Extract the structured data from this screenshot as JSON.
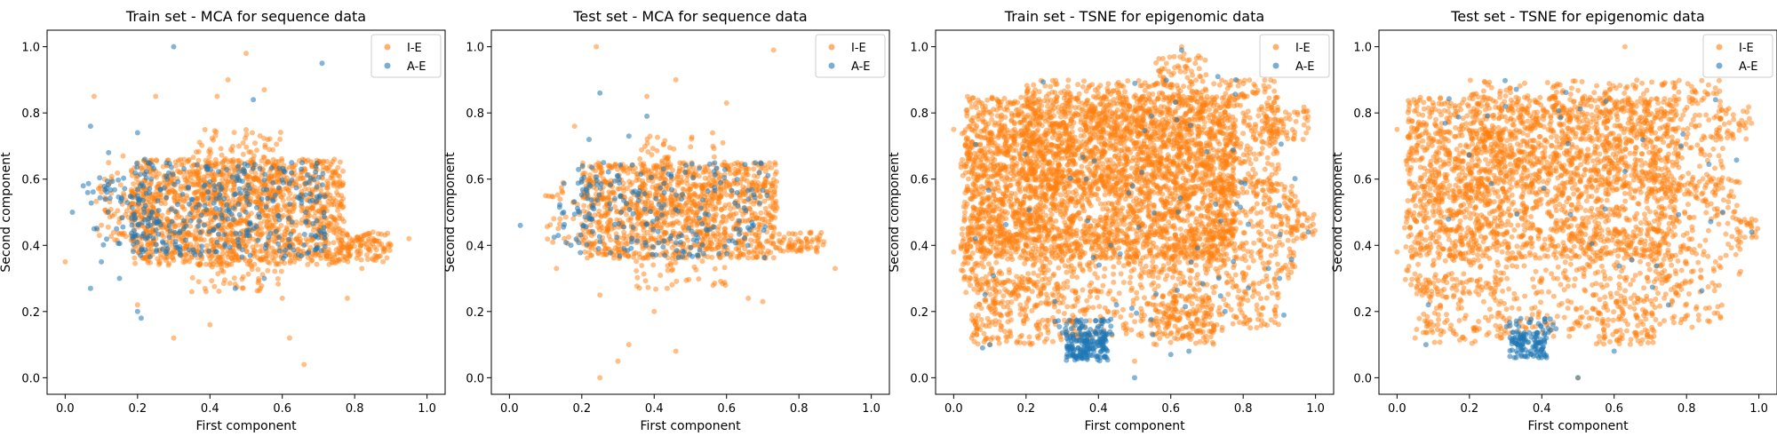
{
  "colors": {
    "ie": "#ff7f0e",
    "ae": "#1f77b4"
  },
  "chart_data": [
    {
      "type": "scatter",
      "title": "Train set - MCA for sequence data",
      "xlabel": "First component",
      "ylabel": "Second component",
      "xlim": [
        -0.05,
        1.05
      ],
      "ylim": [
        -0.05,
        1.05
      ],
      "xticks": [
        "0.0",
        "0.2",
        "0.4",
        "0.6",
        "0.8",
        "1.0"
      ],
      "yticks": [
        "0.0",
        "0.2",
        "0.4",
        "0.6",
        "0.8",
        "1.0"
      ],
      "legend": {
        "placement": "top-right",
        "entries": [
          "I-E",
          "A-E"
        ]
      },
      "series": [
        {
          "name": "I-E",
          "color": "#ff7f0e",
          "points": [
            [
              0.0,
              0.35
            ],
            [
              0.08,
              0.85
            ],
            [
              0.3,
              0.12
            ],
            [
              0.5,
              0.98
            ],
            [
              0.62,
              0.12
            ],
            [
              0.66,
              0.04
            ],
            [
              0.95,
              0.42
            ],
            [
              0.9,
              0.4
            ],
            [
              0.84,
              0.43
            ],
            [
              0.2,
              0.22
            ],
            [
              0.45,
              0.9
            ],
            [
              0.55,
              0.87
            ],
            [
              0.4,
              0.16
            ],
            [
              0.35,
              0.26
            ],
            [
              0.6,
              0.24
            ],
            [
              0.78,
              0.24
            ],
            [
              0.16,
              0.67
            ],
            [
              0.12,
              0.65
            ],
            [
              0.25,
              0.85
            ],
            [
              0.7,
              0.65
            ],
            [
              0.48,
              0.7
            ],
            [
              0.1,
              0.56
            ],
            [
              0.42,
              0.85
            ],
            [
              0.15,
              0.48
            ],
            [
              0.82,
              0.33
            ]
          ],
          "clusters": [
            {
              "x": [
                0.18,
                0.77
              ],
              "y": [
                0.34,
                0.66
              ],
              "n": 1400
            },
            {
              "x": [
                0.35,
                0.6
              ],
              "y": [
                0.26,
                0.75
              ],
              "n": 260
            },
            {
              "x": [
                0.76,
                0.9
              ],
              "y": [
                0.35,
                0.44
              ],
              "n": 110
            },
            {
              "x": [
                0.08,
                0.25
              ],
              "y": [
                0.4,
                0.62
              ],
              "n": 90
            }
          ]
        },
        {
          "name": "A-E",
          "color": "#1f77b4",
          "points": [
            [
              0.3,
              1.0
            ],
            [
              0.71,
              0.95
            ],
            [
              0.07,
              0.76
            ],
            [
              0.02,
              0.5
            ],
            [
              0.07,
              0.27
            ],
            [
              0.2,
              0.2
            ],
            [
              0.21,
              0.18
            ],
            [
              0.12,
              0.68
            ],
            [
              0.28,
              0.4
            ],
            [
              0.52,
              0.84
            ],
            [
              0.05,
              0.58
            ],
            [
              0.1,
              0.35
            ],
            [
              0.15,
              0.3
            ],
            [
              0.2,
              0.74
            ],
            [
              0.08,
              0.45
            ],
            [
              0.22,
              0.66
            ],
            [
              0.55,
              0.3
            ],
            [
              0.47,
              0.27
            ]
          ],
          "clusters": [
            {
              "x": [
                0.18,
                0.72
              ],
              "y": [
                0.36,
                0.65
              ],
              "n": 330
            },
            {
              "x": [
                0.06,
                0.24
              ],
              "y": [
                0.4,
                0.62
              ],
              "n": 60
            }
          ]
        }
      ]
    },
    {
      "type": "scatter",
      "title": "Test set - MCA for sequence data",
      "xlabel": "First component",
      "ylabel": "Second component",
      "xlim": [
        -0.05,
        1.05
      ],
      "ylim": [
        -0.05,
        1.05
      ],
      "xticks": [
        "0.0",
        "0.2",
        "0.4",
        "0.6",
        "0.8",
        "1.0"
      ],
      "yticks": [
        "0.0",
        "0.2",
        "0.4",
        "0.6",
        "0.8",
        "1.0"
      ],
      "legend": {
        "placement": "top-right",
        "entries": [
          "I-E",
          "A-E"
        ]
      },
      "series": [
        {
          "name": "I-E",
          "color": "#ff7f0e",
          "points": [
            [
              0.24,
              1.0
            ],
            [
              0.73,
              0.99
            ],
            [
              0.25,
              0.0
            ],
            [
              0.3,
              0.05
            ],
            [
              0.33,
              0.1
            ],
            [
              0.46,
              0.08
            ],
            [
              0.9,
              0.33
            ],
            [
              0.85,
              0.38
            ],
            [
              0.82,
              0.42
            ],
            [
              0.46,
              0.9
            ],
            [
              0.6,
              0.83
            ],
            [
              0.38,
              0.85
            ],
            [
              0.25,
              0.25
            ],
            [
              0.4,
              0.2
            ],
            [
              0.13,
              0.33
            ],
            [
              0.1,
              0.55
            ],
            [
              0.66,
              0.24
            ],
            [
              0.7,
              0.23
            ],
            [
              0.18,
              0.76
            ]
          ],
          "clusters": [
            {
              "x": [
                0.2,
                0.74
              ],
              "y": [
                0.36,
                0.65
              ],
              "n": 1100
            },
            {
              "x": [
                0.35,
                0.6
              ],
              "y": [
                0.26,
                0.74
              ],
              "n": 160
            },
            {
              "x": [
                0.74,
                0.87
              ],
              "y": [
                0.38,
                0.44
              ],
              "n": 60
            },
            {
              "x": [
                0.1,
                0.25
              ],
              "y": [
                0.4,
                0.6
              ],
              "n": 40
            }
          ]
        },
        {
          "name": "A-E",
          "color": "#1f77b4",
          "points": [
            [
              0.25,
              0.86
            ],
            [
              0.03,
              0.46
            ],
            [
              0.38,
              0.79
            ],
            [
              0.22,
              0.72
            ],
            [
              0.2,
              0.6
            ],
            [
              0.26,
              0.65
            ],
            [
              0.33,
              0.73
            ],
            [
              0.15,
              0.5
            ],
            [
              0.17,
              0.4
            ]
          ],
          "clusters": [
            {
              "x": [
                0.18,
                0.72
              ],
              "y": [
                0.36,
                0.65
              ],
              "n": 200
            },
            {
              "x": [
                0.12,
                0.26
              ],
              "y": [
                0.4,
                0.62
              ],
              "n": 25
            }
          ]
        }
      ]
    },
    {
      "type": "scatter",
      "title": "Train set - TSNE for epigenomic data",
      "xlabel": "First component",
      "ylabel": "Second component",
      "xlim": [
        -0.05,
        1.05
      ],
      "ylim": [
        -0.05,
        1.05
      ],
      "xticks": [
        "0.0",
        "0.2",
        "0.4",
        "0.6",
        "0.8",
        "1.0"
      ],
      "yticks": [
        "0.0",
        "0.2",
        "0.4",
        "0.6",
        "0.8",
        "1.0"
      ],
      "legend": {
        "placement": "top-right",
        "entries": [
          "I-E",
          "A-E"
        ]
      },
      "series": [
        {
          "name": "I-E",
          "color": "#ff7f0e",
          "points": [
            [
              0.63,
              1.0
            ],
            [
              0.0,
              0.75
            ],
            [
              0.99,
              0.44
            ],
            [
              0.95,
              0.47
            ],
            [
              0.92,
              0.52
            ],
            [
              0.0,
              0.38
            ],
            [
              0.02,
              0.4
            ],
            [
              0.05,
              0.12
            ],
            [
              0.1,
              0.1
            ],
            [
              0.5,
              0.05
            ],
            [
              0.56,
              0.1
            ]
          ],
          "clusters": [
            {
              "x": [
                0.03,
                0.78
              ],
              "y": [
                0.36,
                0.85
              ],
              "n": 2600
            },
            {
              "x": [
                0.2,
                0.9
              ],
              "y": [
                0.55,
                0.9
              ],
              "n": 900
            },
            {
              "x": [
                0.02,
                0.3
              ],
              "y": [
                0.25,
                0.75
              ],
              "n": 500
            },
            {
              "x": [
                0.05,
                0.3
              ],
              "y": [
                0.1,
                0.3
              ],
              "n": 220
            },
            {
              "x": [
                0.3,
                0.75
              ],
              "y": [
                0.12,
                0.45
              ],
              "n": 450
            },
            {
              "x": [
                0.7,
                0.95
              ],
              "y": [
                0.3,
                0.6
              ],
              "n": 250
            },
            {
              "x": [
                0.85,
                0.98
              ],
              "y": [
                0.72,
                0.82
              ],
              "n": 70
            },
            {
              "x": [
                0.75,
                0.9
              ],
              "y": [
                0.15,
                0.3
              ],
              "n": 80
            },
            {
              "x": [
                0.55,
                0.72
              ],
              "y": [
                0.1,
                0.25
              ],
              "n": 120
            },
            {
              "x": [
                0.55,
                0.7
              ],
              "y": [
                0.85,
                0.98
              ],
              "n": 60
            },
            {
              "x": [
                0.93,
                1.0
              ],
              "y": [
                0.42,
                0.5
              ],
              "n": 30
            }
          ]
        },
        {
          "name": "A-E",
          "color": "#1f77b4",
          "points": [
            [
              0.63,
              0.99
            ],
            [
              0.5,
              0.0
            ],
            [
              0.73,
              0.91
            ],
            [
              0.08,
              0.09
            ],
            [
              0.1,
              0.1
            ],
            [
              0.6,
              0.07
            ],
            [
              0.65,
              0.08
            ],
            [
              0.87,
              0.33
            ],
            [
              0.9,
              0.52
            ],
            [
              0.98,
              0.44
            ],
            [
              0.78,
              0.9
            ],
            [
              0.06,
              0.42
            ],
            [
              0.28,
              0.23
            ],
            [
              0.45,
              0.22
            ],
            [
              0.75,
              0.2
            ],
            [
              0.55,
              0.13
            ]
          ],
          "clusters": [
            {
              "x": [
                0.31,
                0.43
              ],
              "y": [
                0.05,
                0.14
              ],
              "n": 170
            },
            {
              "x": [
                0.28,
                0.44
              ],
              "y": [
                0.13,
                0.18
              ],
              "n": 40
            },
            {
              "x": [
                0.05,
                0.95
              ],
              "y": [
                0.15,
                0.9
              ],
              "n": 60
            }
          ]
        }
      ]
    },
    {
      "type": "scatter",
      "title": "Test set - TSNE for epigenomic data",
      "xlabel": "First component",
      "ylabel": "Second component",
      "xlim": [
        -0.05,
        1.05
      ],
      "ylim": [
        -0.05,
        1.05
      ],
      "xticks": [
        "0.0",
        "0.2",
        "0.4",
        "0.6",
        "0.8",
        "1.0"
      ],
      "yticks": [
        "0.0",
        "0.2",
        "0.4",
        "0.6",
        "0.8",
        "1.0"
      ],
      "legend": {
        "placement": "top-right",
        "entries": [
          "I-E",
          "A-E"
        ]
      },
      "series": [
        {
          "name": "I-E",
          "color": "#ff7f0e",
          "points": [
            [
              0.63,
              1.0
            ],
            [
              0.0,
              0.75
            ],
            [
              0.99,
              0.44
            ],
            [
              0.95,
              0.47
            ],
            [
              0.0,
              0.38
            ],
            [
              0.05,
              0.12
            ],
            [
              0.5,
              0.0
            ],
            [
              0.92,
              0.55
            ],
            [
              0.88,
              0.35
            ]
          ],
          "clusters": [
            {
              "x": [
                0.03,
                0.78
              ],
              "y": [
                0.36,
                0.85
              ],
              "n": 1700
            },
            {
              "x": [
                0.2,
                0.9
              ],
              "y": [
                0.55,
                0.9
              ],
              "n": 600
            },
            {
              "x": [
                0.02,
                0.3
              ],
              "y": [
                0.25,
                0.75
              ],
              "n": 320
            },
            {
              "x": [
                0.05,
                0.3
              ],
              "y": [
                0.1,
                0.3
              ],
              "n": 140
            },
            {
              "x": [
                0.3,
                0.75
              ],
              "y": [
                0.12,
                0.45
              ],
              "n": 300
            },
            {
              "x": [
                0.7,
                0.95
              ],
              "y": [
                0.3,
                0.6
              ],
              "n": 160
            },
            {
              "x": [
                0.85,
                0.98
              ],
              "y": [
                0.72,
                0.82
              ],
              "n": 45
            },
            {
              "x": [
                0.75,
                0.9
              ],
              "y": [
                0.15,
                0.3
              ],
              "n": 50
            },
            {
              "x": [
                0.55,
                0.72
              ],
              "y": [
                0.1,
                0.25
              ],
              "n": 80
            },
            {
              "x": [
                0.93,
                1.0
              ],
              "y": [
                0.42,
                0.48
              ],
              "n": 20
            }
          ]
        },
        {
          "name": "A-E",
          "color": "#1f77b4",
          "points": [
            [
              0.5,
              0.0
            ],
            [
              0.88,
              0.84
            ],
            [
              0.98,
              0.44
            ],
            [
              0.08,
              0.1
            ],
            [
              0.6,
              0.08
            ],
            [
              0.75,
              0.22
            ],
            [
              0.9,
              0.5
            ]
          ],
          "clusters": [
            {
              "x": [
                0.31,
                0.42
              ],
              "y": [
                0.06,
                0.14
              ],
              "n": 110
            },
            {
              "x": [
                0.3,
                0.44
              ],
              "y": [
                0.13,
                0.18
              ],
              "n": 25
            },
            {
              "x": [
                0.05,
                0.95
              ],
              "y": [
                0.15,
                0.9
              ],
              "n": 35
            }
          ]
        }
      ]
    }
  ]
}
